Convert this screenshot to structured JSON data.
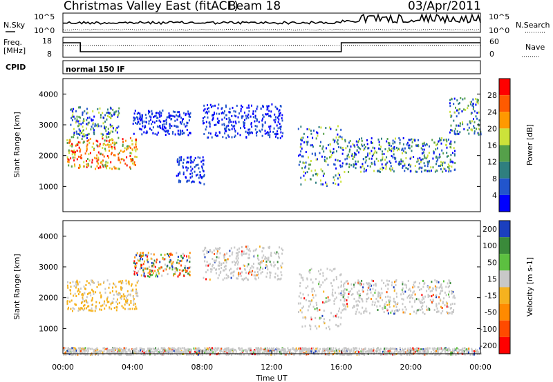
{
  "header": {
    "title": "Christmas Valley East (fitACF)",
    "beam": "Beam 18",
    "date": "03/Apr/2011"
  },
  "top_panels": {
    "nsky_label": "N.Sky",
    "nsearch_label": "N.Search",
    "noise_ticks": [
      "10^5",
      "10^0"
    ],
    "freq_label_line1": "Freq.",
    "freq_label_line2": "[MHz]",
    "freq_ticks": [
      "18",
      "8"
    ],
    "nave_ticks": [
      "60",
      "0"
    ],
    "nave_label": "Nave",
    "cpid_label": "CPID",
    "cpid_value": "normal 150 IF"
  },
  "chart_data": [
    {
      "type": "heatmap",
      "panel": "power",
      "ylabel": "Slant Range [km]",
      "xlabel": "",
      "xlim": [
        "00:00",
        "24:00"
      ],
      "ylim": [
        180,
        4500
      ],
      "yticks": [
        1000,
        2000,
        3000,
        4000
      ],
      "colorbar": {
        "label": "Power [dB]",
        "ticks": [
          4,
          8,
          12,
          16,
          20,
          24,
          28
        ],
        "colors": [
          "#0000ff",
          "#2255cc",
          "#2f7f7f",
          "#55a04a",
          "#cce23a",
          "#ff9900",
          "#ff5a00",
          "#ff0000"
        ]
      },
      "echo_regions": [
        {
          "t_start": 0.2,
          "t_end": 4.3,
          "range_start": 1600,
          "range_end": 2600,
          "level": "high"
        },
        {
          "t_start": 0.4,
          "t_end": 3.2,
          "range_start": 2600,
          "range_end": 3600,
          "level": "medium"
        },
        {
          "t_start": 4.0,
          "t_end": 7.3,
          "range_start": 2700,
          "range_end": 3500,
          "level": "low"
        },
        {
          "t_start": 6.5,
          "t_end": 8.1,
          "range_start": 1100,
          "range_end": 2000,
          "level": "low"
        },
        {
          "t_start": 8.0,
          "t_end": 12.6,
          "range_start": 2600,
          "range_end": 3700,
          "level": "low"
        },
        {
          "t_start": 13.5,
          "t_end": 16.0,
          "range_start": 1000,
          "range_end": 3000,
          "level": "medium"
        },
        {
          "t_start": 16.0,
          "t_end": 22.5,
          "range_start": 1500,
          "range_end": 2600,
          "level": "medium"
        },
        {
          "t_start": 22.2,
          "t_end": 24.0,
          "range_start": 2700,
          "range_end": 3900,
          "level": "medium"
        }
      ]
    },
    {
      "type": "heatmap",
      "panel": "velocity",
      "ylabel": "Slant Range [km]",
      "xlabel": "Time UT",
      "xlim": [
        "00:00",
        "24:00"
      ],
      "xticks": [
        "00:00",
        "04:00",
        "08:00",
        "12:00",
        "16:00",
        "20:00",
        "00:00"
      ],
      "ylim": [
        180,
        4500
      ],
      "yticks": [
        1000,
        2000,
        3000,
        4000
      ],
      "colorbar": {
        "label": "Velocity [m s-1]",
        "ticks": [
          200,
          100,
          50,
          15,
          -15,
          -50,
          -100,
          -200
        ],
        "colors": [
          "#1b3fbf",
          "#3a8a3a",
          "#5cc040",
          "#c8c8c8",
          "#f5b21f",
          "#ff8a00",
          "#ff4a00",
          "#ff0000"
        ]
      },
      "echo_regions": [
        {
          "t_start": 0.2,
          "t_end": 4.3,
          "range_start": 1600,
          "range_end": 2600,
          "level": "-15 to -50"
        },
        {
          "t_start": 4.0,
          "t_end": 7.3,
          "range_start": 2700,
          "range_end": 3500,
          "level": "mixed"
        },
        {
          "t_start": 8.0,
          "t_end": 12.6,
          "range_start": 2600,
          "range_end": 3700,
          "level": "near zero"
        },
        {
          "t_start": 13.5,
          "t_end": 16.0,
          "range_start": 1000,
          "range_end": 3000,
          "level": "near zero"
        },
        {
          "t_start": 16.0,
          "t_end": 22.5,
          "range_start": 1500,
          "range_end": 2600,
          "level": "near zero"
        },
        {
          "t_start": 0.0,
          "t_end": 24.0,
          "range_start": 180,
          "range_end": 400,
          "level": "ground scatter"
        }
      ]
    }
  ]
}
